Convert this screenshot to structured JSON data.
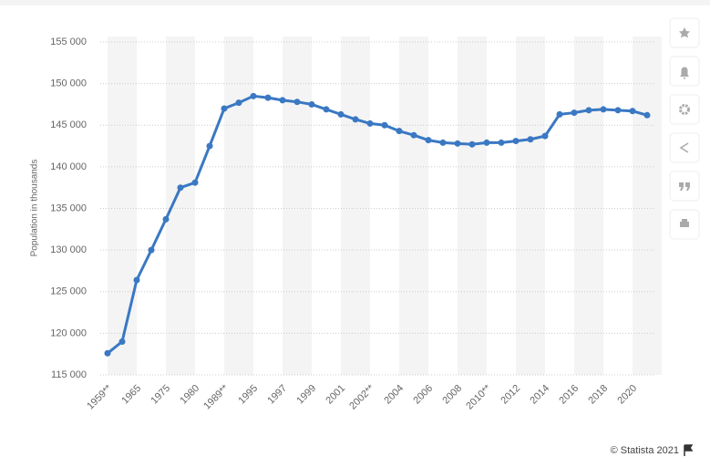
{
  "chart_data": {
    "type": "line",
    "y_label": "Population in thousands",
    "source": "© Statista 2021",
    "categories": [
      "1959**",
      null,
      "1965",
      null,
      "1975",
      null,
      "1980",
      null,
      "1989**",
      null,
      "1995",
      null,
      "1997",
      null,
      "1999",
      null,
      "2001",
      null,
      "2002**",
      null,
      "2004",
      null,
      "2006",
      null,
      "2008",
      null,
      "2010**",
      null,
      "2012",
      null,
      "2014",
      null,
      "2016",
      null,
      "2018",
      null,
      "2020",
      null
    ],
    "series": [
      {
        "name": "Population",
        "color": "#3a78c3",
        "values": [
          117600,
          119000,
          126400,
          130000,
          133700,
          137500,
          138100,
          142500,
          147000,
          147700,
          148500,
          148300,
          148000,
          147800,
          147500,
          146900,
          146300,
          145700,
          145200,
          145000,
          144300,
          143800,
          143200,
          142900,
          142800,
          142700,
          142900,
          142900,
          143100,
          143300,
          143700,
          146300,
          146500,
          146800,
          146900,
          146800,
          146700,
          146200
        ]
      }
    ],
    "ylim": [
      115000,
      155000
    ],
    "yticks": [
      {
        "value": 115000,
        "label": "115 000"
      },
      {
        "value": 120000,
        "label": "120 000"
      },
      {
        "value": 125000,
        "label": "125 000"
      },
      {
        "value": 130000,
        "label": "130 000"
      },
      {
        "value": 135000,
        "label": "135 000"
      },
      {
        "value": 140000,
        "label": "140 000"
      },
      {
        "value": 145000,
        "label": "145 000"
      },
      {
        "value": 150000,
        "label": "150 000"
      },
      {
        "value": 155000,
        "label": "155 000"
      }
    ],
    "grid": true
  }
}
